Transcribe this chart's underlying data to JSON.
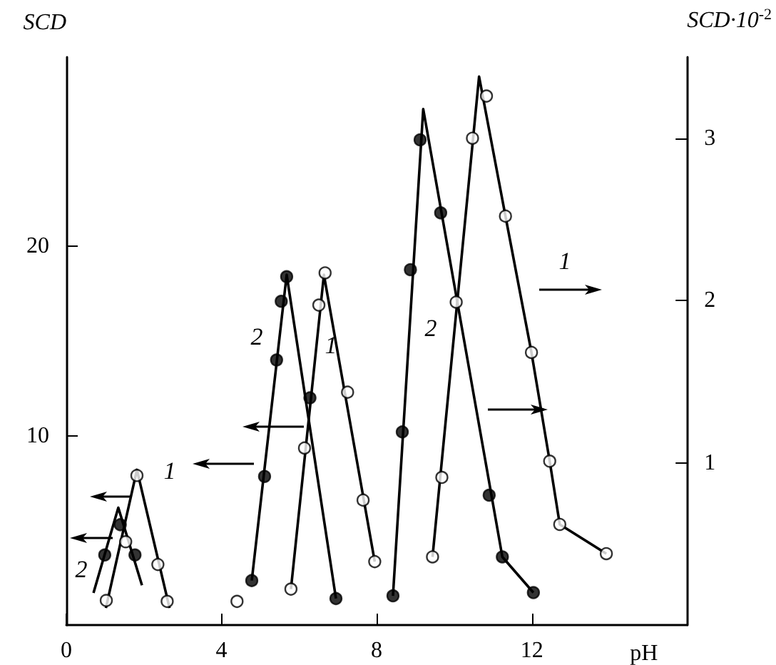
{
  "chart_data": {
    "type": "scatter",
    "xlabel": "pH",
    "ylabel": "SCD",
    "y2label": "SCD·10$^{-2}$",
    "xlim": [
      0,
      16
    ],
    "xticks": [
      0,
      4,
      8,
      12
    ],
    "ylim": [
      0,
      30
    ],
    "yticks": [
      10,
      20
    ],
    "y2lim": [
      0,
      3.5
    ],
    "y2ticks": [
      1,
      2,
      3
    ],
    "grid": false,
    "marker": "circle",
    "annotations": [
      "1",
      "2",
      "2",
      "1",
      "2",
      "1"
    ],
    "series": [
      {
        "color": "#ffffff",
        "x": [
          1.03,
          1.53,
          1.82,
          2.36,
          2.6
        ],
        "values": [
          1.3,
          4.4,
          7.9,
          3.2,
          1.25
        ]
      },
      {
        "type": "line",
        "marker": "none",
        "color": "#000000",
        "x": [
          1.02,
          1.82,
          2.66
        ],
        "values": [
          0.9,
          8.2,
          0.9
        ]
      },
      {
        "color": "#000000",
        "x": [
          0.99,
          1.39,
          1.77
        ],
        "values": [
          3.7,
          5.3,
          3.7
        ]
      },
      {
        "type": "line",
        "marker": "none",
        "color": "#000000",
        "x": [
          0.7,
          1.34,
          1.95
        ],
        "values": [
          1.7,
          6.2,
          2.1
        ]
      },
      {
        "color": "#000000",
        "x": [
          4.78,
          5.11,
          5.42,
          5.54,
          5.68,
          6.28,
          6.95
        ],
        "values": [
          2.35,
          7.85,
          14.0,
          17.1,
          18.4,
          12.0,
          1.4
        ]
      },
      {
        "type": "line",
        "marker": "none",
        "color": "#000000",
        "x": [
          4.78,
          5.68,
          6.95
        ],
        "values": [
          2.35,
          18.5,
          1.4
        ]
      },
      {
        "color": "#ffffff",
        "x": [
          4.4,
          5.79,
          6.14,
          6.51,
          6.67,
          7.25,
          7.65,
          7.95
        ],
        "values": [
          1.25,
          1.9,
          9.35,
          16.9,
          18.6,
          12.3,
          6.6,
          3.35
        ]
      },
      {
        "type": "line",
        "marker": "none",
        "color": "#000000",
        "x": [
          5.79,
          6.64,
          7.95
        ],
        "values": [
          1.9,
          18.5,
          3.35
        ]
      },
      {
        "axis": "y2",
        "color": "#000000",
        "x": [
          8.42,
          8.66,
          8.87,
          9.12,
          9.65,
          10.9,
          11.24,
          12.04
        ],
        "values": [
          0.18,
          1.19,
          2.19,
          2.99,
          2.54,
          0.8,
          0.42,
          0.2
        ]
      },
      {
        "axis": "y2",
        "type": "line",
        "marker": "none",
        "color": "#000000",
        "x": [
          8.42,
          9.2,
          11.24,
          12.04
        ],
        "values": [
          0.18,
          3.18,
          0.42,
          0.2
        ]
      },
      {
        "axis": "y2",
        "color": "#ffffff",
        "x": [
          9.44,
          9.68,
          10.05,
          10.47,
          10.83,
          11.32,
          11.99,
          12.46,
          12.72,
          13.92
        ],
        "values": [
          0.42,
          0.91,
          1.99,
          3.0,
          3.26,
          2.52,
          1.68,
          1.01,
          0.62,
          0.44
        ]
      },
      {
        "axis": "y2",
        "type": "line",
        "marker": "none",
        "color": "#000000",
        "x": [
          9.44,
          10.64,
          11.32,
          11.99,
          12.46,
          12.72,
          13.92
        ],
        "values": [
          0.42,
          3.38,
          2.52,
          1.68,
          1.01,
          0.62,
          0.44
        ]
      }
    ]
  }
}
